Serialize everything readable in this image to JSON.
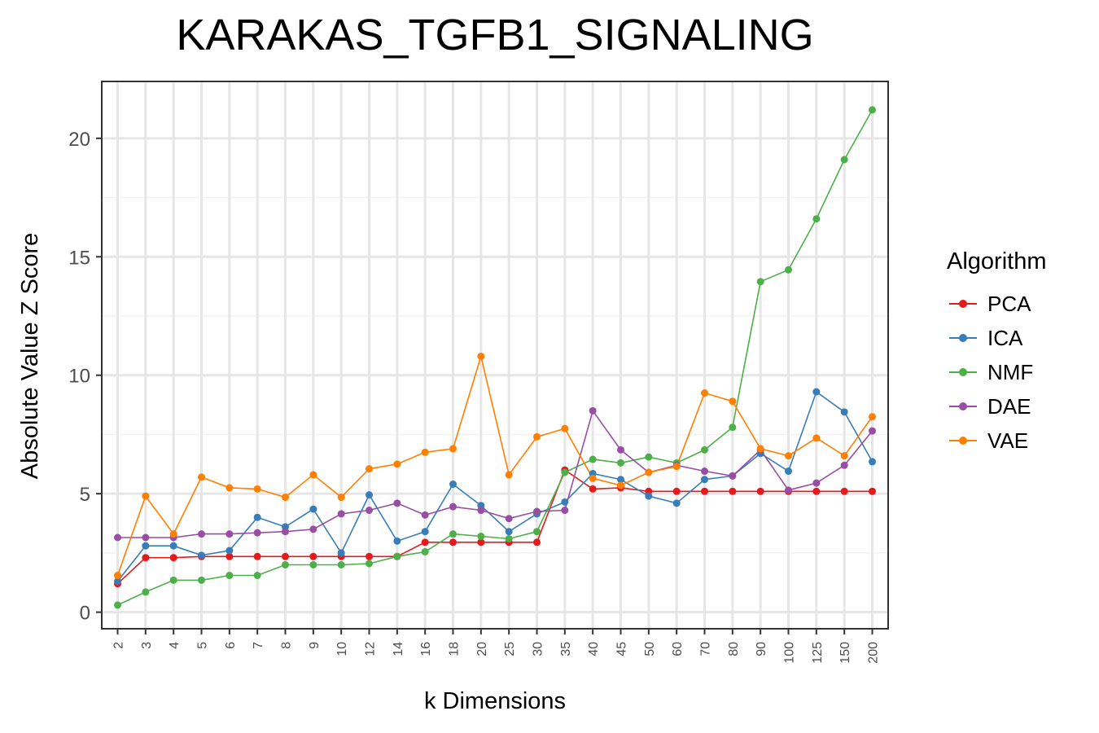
{
  "chart_data": {
    "type": "line",
    "title": "KARAKAS_TGFB1_SIGNALING",
    "xlabel": "k Dimensions",
    "ylabel": "Absolute Value Z Score",
    "categories": [
      "2",
      "3",
      "4",
      "5",
      "6",
      "7",
      "8",
      "9",
      "10",
      "12",
      "14",
      "16",
      "18",
      "20",
      "25",
      "30",
      "35",
      "40",
      "45",
      "50",
      "60",
      "70",
      "80",
      "90",
      "100",
      "125",
      "150",
      "200"
    ],
    "ylim": [
      -0.7,
      22.4
    ],
    "yticks": [
      0,
      5,
      10,
      15,
      20
    ],
    "grid": true,
    "legend": {
      "title": "Algorithm",
      "placement": "right"
    },
    "series": [
      {
        "name": "PCA",
        "color": "#e41a1c",
        "values": [
          1.2,
          2.3,
          2.3,
          2.35,
          2.35,
          2.35,
          2.35,
          2.35,
          2.35,
          2.35,
          2.35,
          2.95,
          2.95,
          2.95,
          2.95,
          2.95,
          6.0,
          5.2,
          5.25,
          5.1,
          5.1,
          5.1,
          5.1,
          5.1,
          5.1,
          5.1,
          5.1,
          5.1
        ]
      },
      {
        "name": "ICA",
        "color": "#377eb8",
        "values": [
          1.3,
          2.8,
          2.8,
          2.4,
          2.6,
          4.0,
          3.6,
          4.35,
          2.5,
          4.95,
          3.0,
          3.4,
          5.4,
          4.5,
          3.4,
          4.15,
          4.65,
          5.85,
          5.6,
          4.9,
          4.6,
          5.6,
          5.75,
          6.7,
          5.95,
          9.3,
          8.45,
          6.35
        ]
      },
      {
        "name": "NMF",
        "color": "#4daf4a",
        "values": [
          0.3,
          0.85,
          1.35,
          1.35,
          1.55,
          1.55,
          2.0,
          2.0,
          2.0,
          2.05,
          2.35,
          2.55,
          3.3,
          3.2,
          3.1,
          3.4,
          5.9,
          6.45,
          6.3,
          6.55,
          6.3,
          6.85,
          7.8,
          13.95,
          14.45,
          16.6,
          19.1,
          21.2
        ]
      },
      {
        "name": "DAE",
        "color": "#984ea3",
        "values": [
          3.15,
          3.15,
          3.15,
          3.3,
          3.3,
          3.35,
          3.4,
          3.5,
          4.15,
          4.3,
          4.6,
          4.1,
          4.45,
          4.3,
          3.95,
          4.25,
          4.3,
          8.5,
          6.85,
          5.9,
          6.2,
          5.95,
          5.75,
          6.85,
          5.15,
          5.45,
          6.2,
          7.65
        ]
      },
      {
        "name": "VAE",
        "color": "#ff7f00",
        "values": [
          1.55,
          4.9,
          3.3,
          5.7,
          5.25,
          5.2,
          4.85,
          5.8,
          4.85,
          6.05,
          6.25,
          6.75,
          6.9,
          10.8,
          5.8,
          7.4,
          7.75,
          5.65,
          5.35,
          5.9,
          6.15,
          9.25,
          8.9,
          6.9,
          6.6,
          7.35,
          6.6,
          8.25
        ]
      }
    ]
  }
}
